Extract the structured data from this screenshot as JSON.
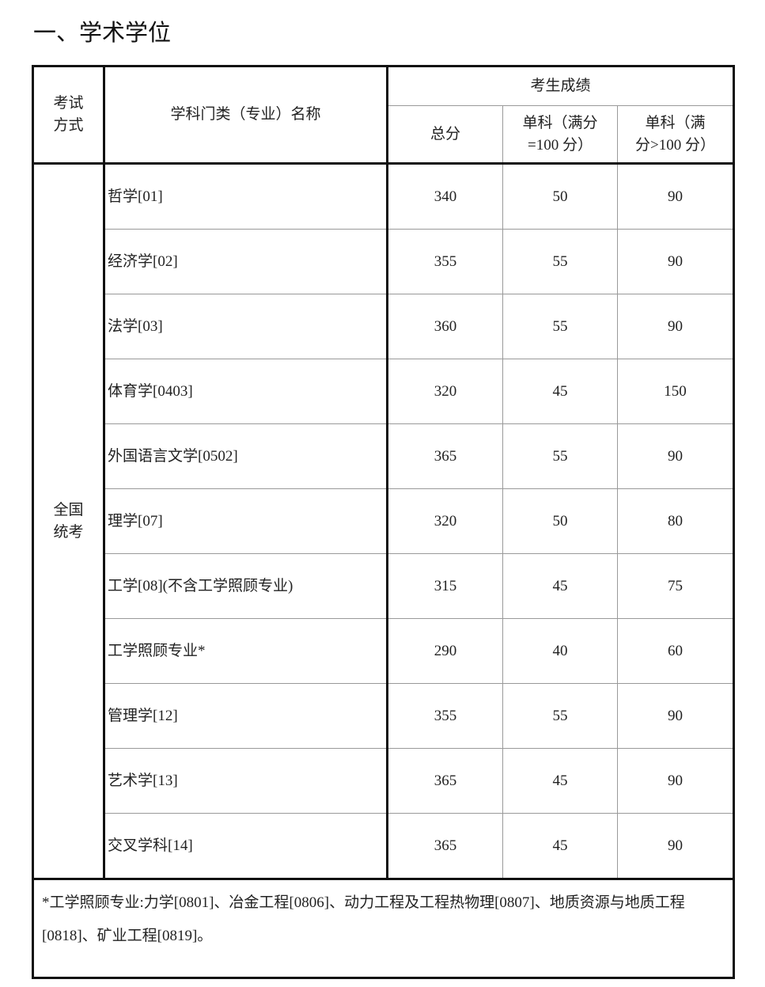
{
  "section_title": "一、学术学位",
  "table": {
    "headers": {
      "exam_mode": "考试方式",
      "exam_mode_lines": [
        "考试",
        "方式"
      ],
      "discipline": "学科门类（专业）名称",
      "scores_group": "考生成绩",
      "total": "总分",
      "single_100_lines": [
        "单科（满分",
        "=100 分）"
      ],
      "single_over100_lines": [
        "单科（满",
        "分>100 分）"
      ]
    },
    "exam_mode_value_lines": [
      "全国",
      "统考"
    ],
    "rows": [
      {
        "name": "哲学[01]",
        "total": "340",
        "single_100": "50",
        "single_over100": "90"
      },
      {
        "name": "经济学[02]",
        "total": "355",
        "single_100": "55",
        "single_over100": "90"
      },
      {
        "name": "法学[03]",
        "total": "360",
        "single_100": "55",
        "single_over100": "90"
      },
      {
        "name": "体育学[0403]",
        "total": "320",
        "single_100": "45",
        "single_over100": "150"
      },
      {
        "name": "外国语言文学[0502]",
        "total": "365",
        "single_100": "55",
        "single_over100": "90"
      },
      {
        "name": "理学[07]",
        "total": "320",
        "single_100": "50",
        "single_over100": "80"
      },
      {
        "name": "工学[08](不含工学照顾专业)",
        "total": "315",
        "single_100": "45",
        "single_over100": "75"
      },
      {
        "name": "工学照顾专业*",
        "total": "290",
        "single_100": "40",
        "single_over100": "60"
      },
      {
        "name": "管理学[12]",
        "total": "355",
        "single_100": "55",
        "single_over100": "90"
      },
      {
        "name": "艺术学[13]",
        "total": "365",
        "single_100": "45",
        "single_over100": "90"
      },
      {
        "name": "交叉学科[14]",
        "total": "365",
        "single_100": "45",
        "single_over100": "90"
      }
    ],
    "footnote": "*工学照顾专业:力学[0801]、冶金工程[0806]、动力工程及工程热物理[0807]、地质资源与地质工程[0818]、矿业工程[0819]。"
  }
}
